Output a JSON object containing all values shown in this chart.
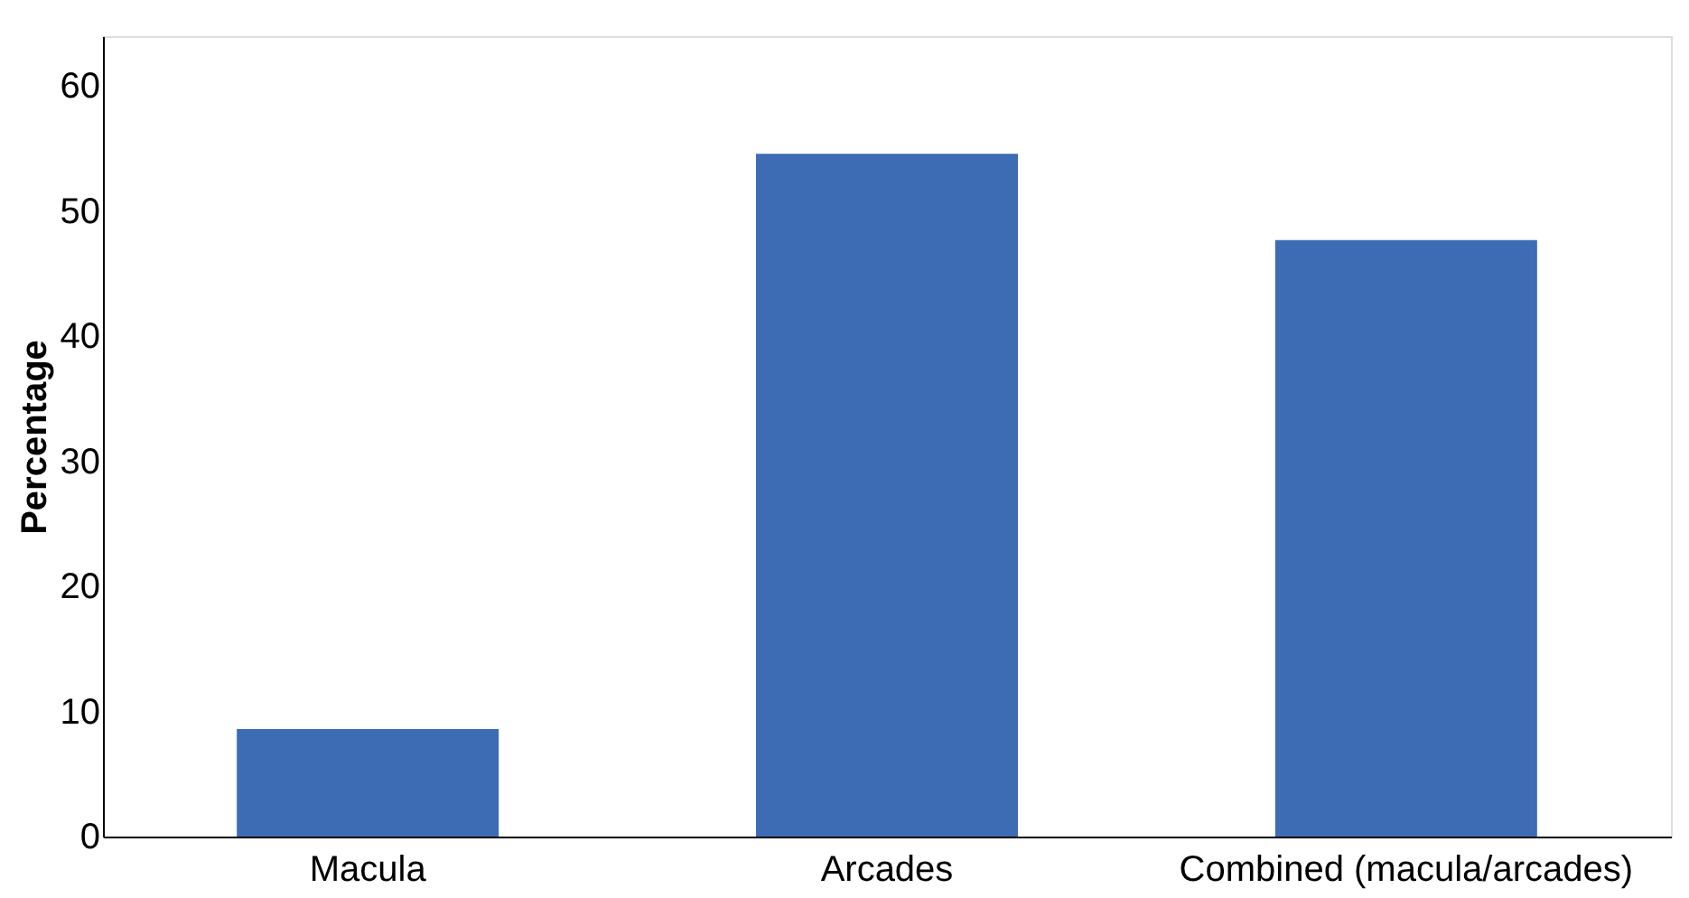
{
  "chart_data": {
    "type": "bar",
    "ylabel": "Percentage",
    "categories": [
      "Macula",
      "Arcades",
      "Combined (macula/arcades)"
    ],
    "values": [
      8.6,
      54.6,
      47.7
    ],
    "color": "#3d6cb4",
    "ylim": [
      0,
      64
    ],
    "yticks": [
      0,
      10,
      20,
      30,
      40,
      50,
      60
    ],
    "grid": false
  }
}
